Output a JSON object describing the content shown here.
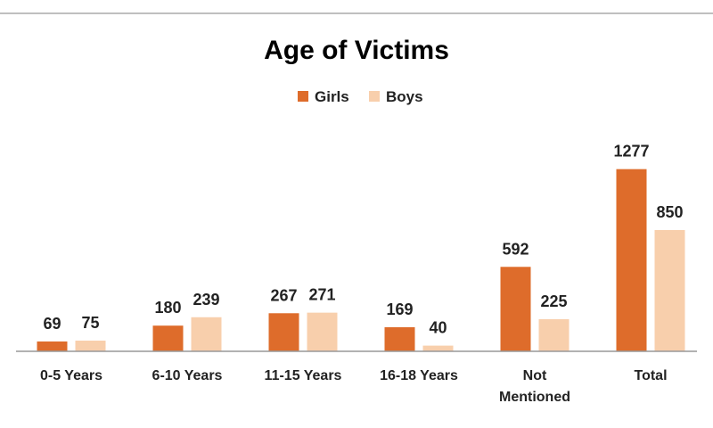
{
  "chart_data": {
    "type": "bar",
    "title": "Age of Victims",
    "categories": [
      "0-5 Years",
      "6-10 Years",
      "11-15 Years",
      "16-18 Years",
      "Not Mentioned",
      "Total"
    ],
    "series": [
      {
        "name": "Girls",
        "values": [
          69,
          180,
          267,
          169,
          592,
          1277
        ],
        "color": "#DE6C2B"
      },
      {
        "name": "Boys",
        "values": [
          75,
          239,
          271,
          40,
          225,
          850
        ],
        "color": "#F8CFAC"
      }
    ],
    "ylim": [
      0,
      1400
    ],
    "grid": false,
    "legend_position": "top-center",
    "data_labels": true
  }
}
